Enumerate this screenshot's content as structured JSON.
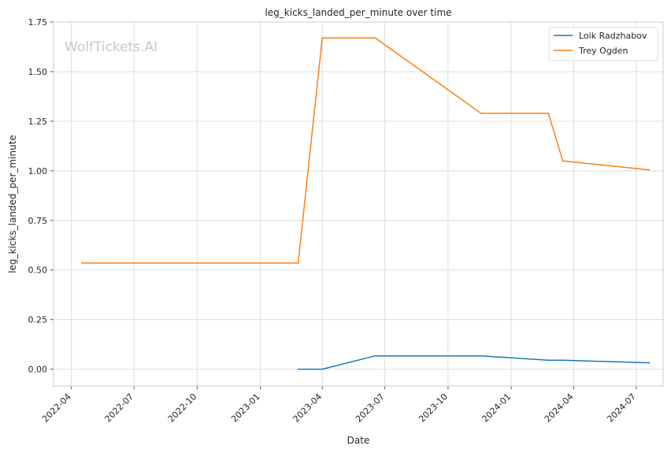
{
  "chart_data": {
    "type": "line",
    "title": "leg_kicks_landed_per_minute over time",
    "xlabel": "Date",
    "ylabel": "leg_kicks_landed_per_minute",
    "watermark": "WolfTickets.AI",
    "x_ticks": [
      "2022-04",
      "2022-07",
      "2022-10",
      "2023-01",
      "2023-04",
      "2023-07",
      "2023-10",
      "2024-01",
      "2024-04",
      "2024-07"
    ],
    "y_ticks": [
      "0.00",
      "0.25",
      "0.50",
      "0.75",
      "1.00",
      "1.25",
      "1.50",
      "1.75"
    ],
    "xlim": [
      "2022-03-06",
      "2024-08-09"
    ],
    "ylim": [
      -0.085,
      1.75
    ],
    "grid": true,
    "legend": "top-right",
    "series": [
      {
        "name": "Loik Radzhabov",
        "color": "#1f77b4",
        "points": [
          {
            "x": "2023-02-25",
            "y": 0.0
          },
          {
            "x": "2023-04-01",
            "y": 0.0
          },
          {
            "x": "2023-06-17",
            "y": 0.067
          },
          {
            "x": "2023-11-18",
            "y": 0.067
          },
          {
            "x": "2024-02-24",
            "y": 0.045
          },
          {
            "x": "2024-03-16",
            "y": 0.045
          },
          {
            "x": "2024-07-20",
            "y": 0.032
          }
        ]
      },
      {
        "name": "Trey Ogden",
        "color": "#ff7f0e",
        "points": [
          {
            "x": "2022-04-16",
            "y": 0.535
          },
          {
            "x": "2023-02-25",
            "y": 0.535
          },
          {
            "x": "2023-04-01",
            "y": 1.67
          },
          {
            "x": "2023-06-17",
            "y": 1.67
          },
          {
            "x": "2023-11-18",
            "y": 1.29
          },
          {
            "x": "2024-02-24",
            "y": 1.29
          },
          {
            "x": "2024-03-16",
            "y": 1.05
          },
          {
            "x": "2024-07-20",
            "y": 1.005
          }
        ]
      }
    ]
  }
}
